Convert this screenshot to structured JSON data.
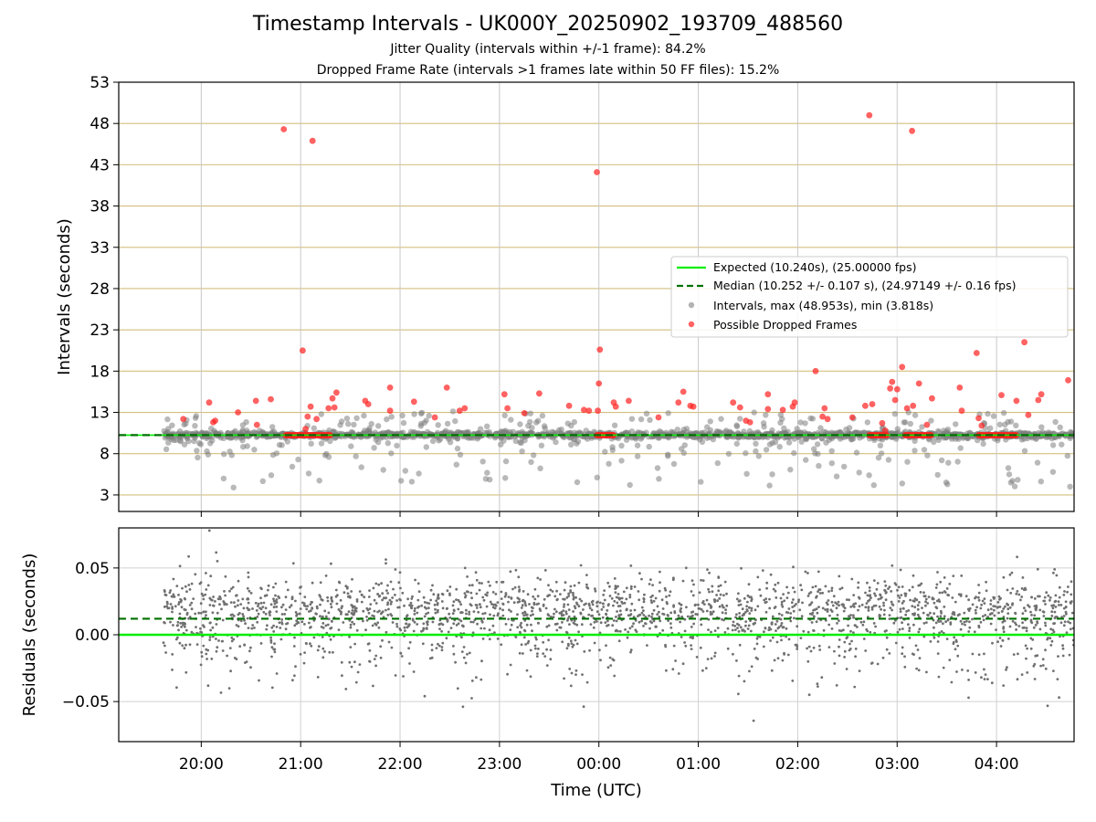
{
  "chart_data": {
    "type": "scatter",
    "title": "Timestamp Intervals - UK000Y_20250902_193709_488560",
    "subtitles": [
      "Jitter Quality (intervals within +/-1 frame): 84.2%",
      "Dropped Frame Rate (intervals >1 frames late within 50 FF files): 15.2%"
    ],
    "xlabel": "Time (UTC)",
    "x_tick_labels": [
      "20:00",
      "21:00",
      "22:00",
      "23:00",
      "00:00",
      "01:00",
      "02:00",
      "03:00",
      "04:00"
    ],
    "x_range_hours": [
      19.17,
      28.78
    ],
    "data_start_hours": 19.62,
    "data_end_hours": 28.78,
    "top_panel": {
      "ylabel": "Intervals (seconds)",
      "ylim": [
        1,
        53
      ],
      "y_ticks": [
        3,
        8,
        13,
        18,
        23,
        28,
        33,
        38,
        43,
        48,
        53
      ],
      "grid_color": "#d4bf7d",
      "expected_interval": 10.24,
      "median_interval": 10.252,
      "legend_position": "center-right",
      "legend": [
        "Expected (10.240s), (25.00000 fps)",
        "Median (10.252 +/- 0.107 s), (24.97149 +/- 0.16 fps)",
        "Intervals, max (48.953s), min (3.818s)",
        "Possible Dropped Frames"
      ],
      "dropped_frames": [
        [
          19.82,
          12.2
        ],
        [
          20.08,
          14.2
        ],
        [
          20.12,
          11.8
        ],
        [
          20.14,
          12.0
        ],
        [
          20.37,
          13.0
        ],
        [
          20.55,
          14.4
        ],
        [
          20.56,
          11.5
        ],
        [
          20.7,
          14.6
        ],
        [
          20.83,
          47.3
        ],
        [
          21.02,
          20.5
        ],
        [
          21.05,
          11.0
        ],
        [
          21.07,
          12.5
        ],
        [
          21.1,
          13.7
        ],
        [
          21.12,
          45.9
        ],
        [
          21.16,
          12.2
        ],
        [
          21.28,
          13.5
        ],
        [
          21.32,
          14.7
        ],
        [
          21.34,
          13.6
        ],
        [
          21.36,
          15.4
        ],
        [
          21.65,
          14.4
        ],
        [
          21.68,
          14.0
        ],
        [
          21.9,
          13.2
        ],
        [
          21.9,
          16.0
        ],
        [
          22.14,
          14.3
        ],
        [
          22.35,
          12.4
        ],
        [
          22.47,
          16.0
        ],
        [
          22.6,
          13.2
        ],
        [
          22.65,
          13.5
        ],
        [
          23.05,
          15.2
        ],
        [
          23.08,
          13.5
        ],
        [
          23.25,
          12.9
        ],
        [
          23.4,
          15.3
        ],
        [
          23.7,
          13.8
        ],
        [
          23.85,
          13.3
        ],
        [
          23.9,
          13.2
        ],
        [
          23.98,
          42.1
        ],
        [
          23.99,
          13.2
        ],
        [
          24.0,
          16.5
        ],
        [
          24.01,
          20.6
        ],
        [
          24.15,
          14.2
        ],
        [
          24.17,
          13.7
        ],
        [
          24.3,
          14.4
        ],
        [
          24.6,
          12.4
        ],
        [
          24.8,
          14.2
        ],
        [
          24.85,
          15.5
        ],
        [
          24.92,
          13.8
        ],
        [
          24.95,
          13.7
        ],
        [
          25.35,
          14.2
        ],
        [
          25.42,
          13.6
        ],
        [
          25.48,
          12.0
        ],
        [
          25.52,
          11.8
        ],
        [
          25.7,
          15.2
        ],
        [
          25.7,
          13.4
        ],
        [
          25.85,
          13.3
        ],
        [
          25.95,
          13.7
        ],
        [
          25.97,
          14.2
        ],
        [
          26.18,
          18.0
        ],
        [
          26.25,
          12.5
        ],
        [
          26.27,
          13.5
        ],
        [
          26.3,
          12.2
        ],
        [
          26.55,
          12.4
        ],
        [
          26.68,
          13.8
        ],
        [
          26.72,
          49.0
        ],
        [
          26.75,
          14.0
        ],
        [
          26.85,
          11.7
        ],
        [
          26.88,
          10.8
        ],
        [
          26.93,
          15.9
        ],
        [
          26.95,
          16.7
        ],
        [
          26.98,
          14.5
        ],
        [
          27.0,
          15.8
        ],
        [
          27.05,
          18.5
        ],
        [
          27.1,
          13.5
        ],
        [
          27.15,
          47.1
        ],
        [
          27.16,
          13.8
        ],
        [
          27.22,
          16.5
        ],
        [
          27.3,
          11.5
        ],
        [
          27.35,
          14.7
        ],
        [
          27.63,
          16.0
        ],
        [
          27.65,
          13.2
        ],
        [
          27.8,
          20.2
        ],
        [
          27.82,
          12.3
        ],
        [
          27.85,
          11.4
        ],
        [
          28.05,
          15.1
        ],
        [
          28.2,
          14.4
        ],
        [
          28.28,
          21.5
        ],
        [
          28.32,
          12.7
        ],
        [
          28.42,
          14.5
        ],
        [
          28.45,
          15.2
        ],
        [
          28.72,
          16.9
        ]
      ],
      "dropped_frame_clusters": [
        [
          20.85,
          21.3
        ],
        [
          23.98,
          24.15
        ],
        [
          26.72,
          26.9
        ],
        [
          27.08,
          27.35
        ],
        [
          27.82,
          28.2
        ]
      ],
      "dropped_frame_cluster_value": 10.24
    },
    "bottom_panel": {
      "ylabel": "Residuals (seconds)",
      "ylim": [
        -0.08,
        0.08
      ],
      "y_ticks": [
        -0.05,
        0.0,
        0.05
      ],
      "y_tick_labels": [
        "−0.05",
        "0.00",
        "0.05"
      ],
      "expected_level": 0.0,
      "median_level": 0.012
    },
    "colors": {
      "expected": "#00ee00",
      "median": "#007000",
      "intervals": "#808080",
      "dropped": "#ff2020",
      "residuals": "#707070"
    }
  }
}
